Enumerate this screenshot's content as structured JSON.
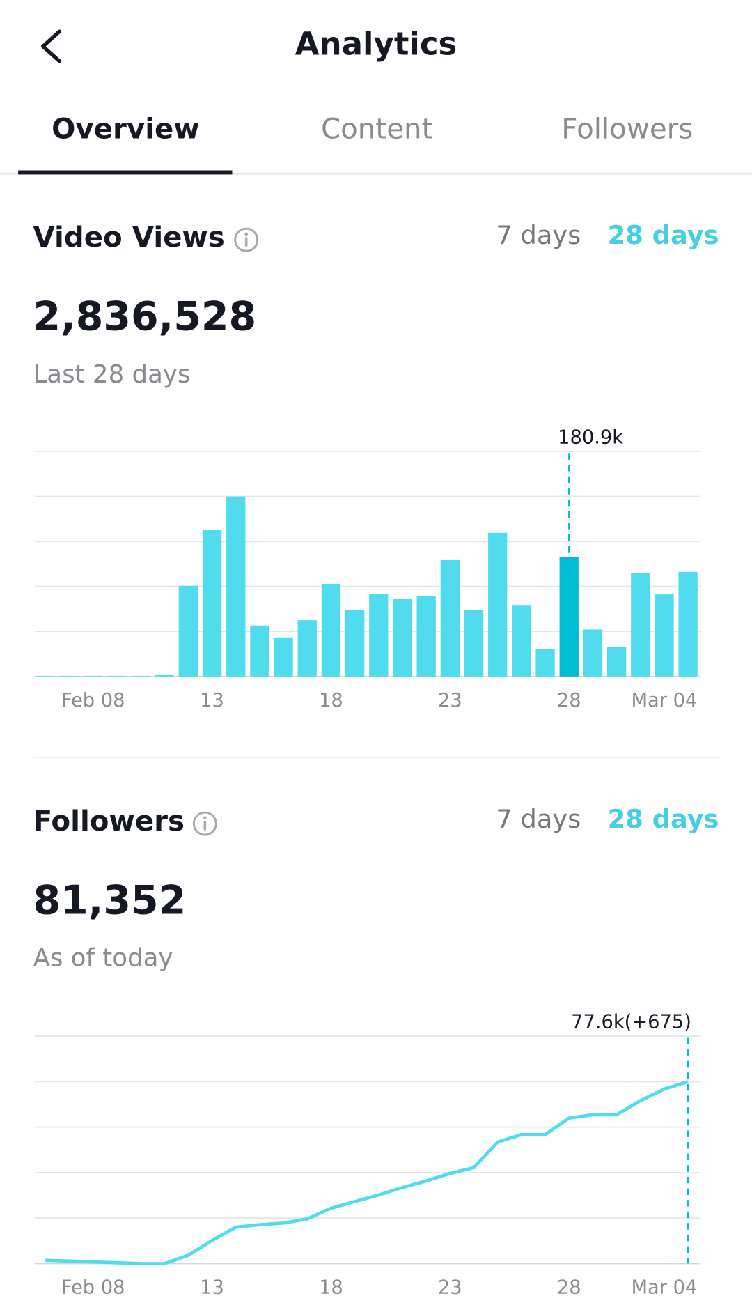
{
  "header": {
    "title": "Analytics"
  },
  "tabs": [
    "Overview",
    "Content",
    "Followers"
  ],
  "sections": [
    {
      "title": "Video Views",
      "periods": [
        "7 days",
        "28 days"
      ],
      "total": "2,836,528",
      "caption": "Last 28 days"
    },
    {
      "title": "Followers",
      "periods": [
        "7 days",
        "28 days"
      ],
      "total": "81,352",
      "caption": "As of today"
    }
  ],
  "chart_data": [
    {
      "type": "bar",
      "color": "#50dced",
      "highlight_color": "#00bcd4",
      "categories": [
        null,
        null,
        "Feb 08",
        null,
        null,
        null,
        null,
        "13",
        null,
        null,
        null,
        null,
        "18",
        null,
        null,
        null,
        null,
        "23",
        null,
        null,
        null,
        null,
        "28",
        null,
        null,
        null,
        "Mar 04",
        null
      ],
      "values": [
        800,
        800,
        800,
        800,
        800,
        2000,
        137000,
        222000,
        272000,
        77000,
        59000,
        85000,
        140000,
        101000,
        125000,
        117000,
        122000,
        176000,
        100000,
        217000,
        107000,
        41000,
        180900,
        71000,
        45000,
        156000,
        124000,
        158000
      ],
      "value_labels": [
        null,
        null,
        null,
        null,
        null,
        null,
        null,
        null,
        null,
        null,
        null,
        null,
        null,
        null,
        null,
        null,
        null,
        null,
        null,
        null,
        null,
        null,
        "180.9k",
        null,
        null,
        null,
        null,
        null
      ],
      "ylim": [
        0,
        340000
      ],
      "yticks": [
        0,
        68000,
        136000,
        204000,
        272000,
        340000
      ],
      "grid": true
    },
    {
      "type": "line",
      "color": "#50dced",
      "highlight_color": "#00bcd4",
      "categories": [
        null,
        null,
        "Feb 08",
        null,
        null,
        null,
        null,
        "13",
        null,
        null,
        null,
        null,
        "18",
        null,
        null,
        null,
        null,
        "23",
        null,
        null,
        null,
        null,
        "28",
        null,
        null,
        null,
        "Mar 04",
        null
      ],
      "values": [
        1411,
        1058,
        705,
        353,
        0,
        0,
        3527,
        9876,
        15520,
        16578,
        17284,
        19047,
        23633,
        26455,
        29276,
        32451,
        35273,
        38447,
        40916,
        51851,
        55025,
        55025,
        62080,
        63491,
        63491,
        69487,
        74425,
        77600
      ],
      "value_labels": [
        null,
        null,
        null,
        null,
        null,
        null,
        null,
        null,
        null,
        null,
        null,
        null,
        null,
        null,
        null,
        null,
        null,
        null,
        null,
        null,
        null,
        null,
        null,
        null,
        null,
        null,
        null,
        "77.6k(+675)"
      ],
      "ylim": [
        0,
        97000
      ],
      "yticks": [
        0,
        19400,
        38800,
        58200,
        77600,
        97000
      ],
      "grid": true
    }
  ]
}
